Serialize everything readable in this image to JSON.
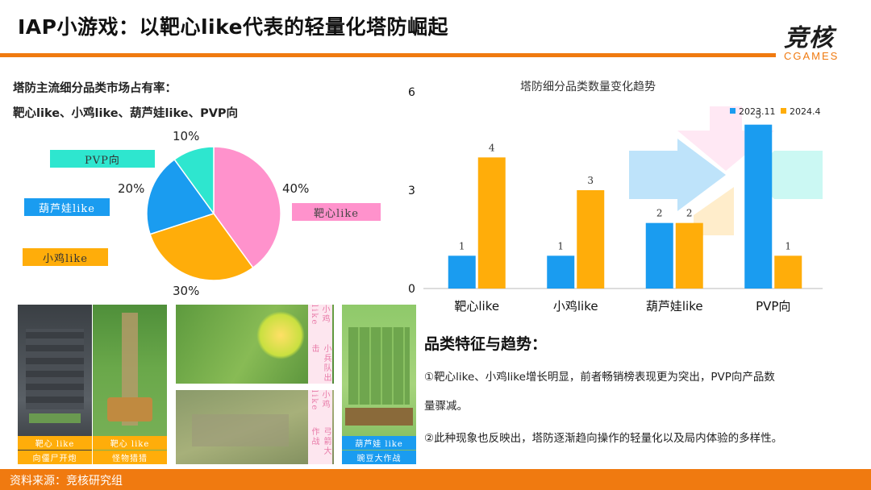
{
  "title": "IAP小游戏：以靶心like代表的轻量化塔防崛起",
  "logo": {
    "mark": "竞核",
    "text": "CGAMES"
  },
  "footer": "资料来源：竞核研究组",
  "pie_section": {
    "heading": "塔防主流细分品类市场占有率：",
    "subheading": "靶心like、小鸡like、葫芦娃like、PVP向",
    "tags": [
      {
        "label": "PVP向",
        "color": "#2ee6cf"
      },
      {
        "label": "葫芦娃like",
        "color": "#1a9cf0"
      },
      {
        "label": "小鸡like",
        "color": "#ffad0a"
      },
      {
        "label": "靶心like",
        "color": "#ff92cc"
      }
    ]
  },
  "trend": {
    "heading": "品类特征与趋势：",
    "line1": "①靶心like、小鸡like增长明显，前者畅销榜表现更为突出，PVP向产品数",
    "line2": "量骤减。",
    "line3": "②此种现象也反映出，塔防逐渐趋向操作的轻量化以及局内体验的多样性。"
  },
  "screenshots": [
    {
      "caption_top": "靶心 like",
      "caption_bottom": "向僵尸开炮"
    },
    {
      "caption_top": "靶心 like",
      "caption_bottom": "怪物猎猎"
    },
    {
      "vtag_top": "小鸡 like",
      "vtag_bottom": "小兵队出击"
    },
    {
      "vtag_top": "小鸡 like",
      "vtag_bottom": "弓箭大作战"
    },
    {
      "caption_top": "葫芦娃 like",
      "caption_bottom": "豌豆大作战"
    }
  ],
  "chart_data": [
    {
      "type": "pie",
      "title": "",
      "categories": [
        "靶心like",
        "小鸡like",
        "葫芦娃like",
        "PVP向"
      ],
      "values": [
        40,
        30,
        20,
        10
      ],
      "labels": [
        "40%",
        "30%",
        "20%",
        "10%"
      ],
      "colors": [
        "#ff92cc",
        "#ffad0a",
        "#1a9cf0",
        "#2ee6cf"
      ]
    },
    {
      "type": "bar",
      "title": "塔防细分品类数量变化趋势",
      "categories": [
        "靶心like",
        "小鸡like",
        "葫芦娃like",
        "PVP向"
      ],
      "series": [
        {
          "name": "2023.11",
          "values": [
            1,
            1,
            2,
            5
          ],
          "color": "#1a9cf0"
        },
        {
          "name": "2024.4",
          "values": [
            4,
            3,
            2,
            1
          ],
          "color": "#ffad0a"
        }
      ],
      "ylim": [
        0,
        6
      ],
      "yticks": [
        "0",
        "3",
        "6"
      ],
      "grid": false,
      "legend": "top-right"
    }
  ]
}
